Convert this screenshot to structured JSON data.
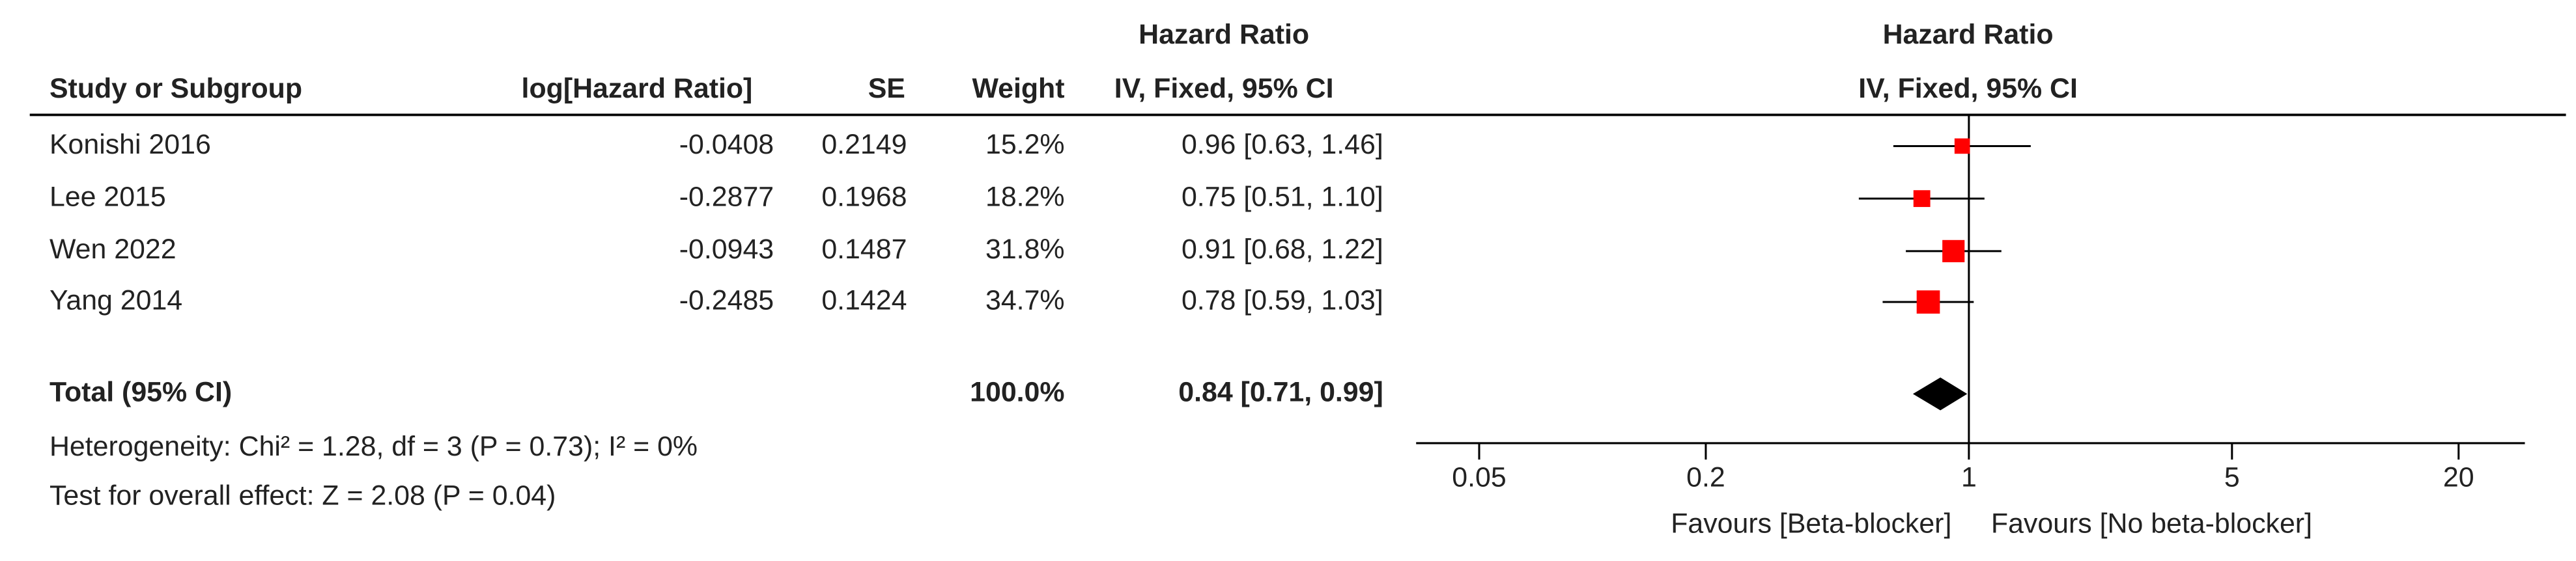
{
  "chart_data": {
    "type": "forest",
    "header_top": "Hazard Ratio",
    "header_sub": "IV, Fixed, 95% CI",
    "columns": [
      "Study or Subgroup",
      "log[Hazard Ratio]",
      "SE",
      "Weight"
    ],
    "studies": [
      {
        "name": "Konishi 2016",
        "log_hr": -0.0408,
        "se": 0.2149,
        "weight": 15.2,
        "weight_label": "15.2%",
        "hr": 0.96,
        "ci_low": 0.63,
        "ci_high": 1.46,
        "ci_label": "0.96 [0.63, 1.46]"
      },
      {
        "name": "Lee 2015",
        "log_hr": -0.2877,
        "se": 0.1968,
        "weight": 18.2,
        "weight_label": "18.2%",
        "hr": 0.75,
        "ci_low": 0.51,
        "ci_high": 1.1,
        "ci_label": "0.75 [0.51, 1.10]"
      },
      {
        "name": "Wen 2022",
        "log_hr": -0.0943,
        "se": 0.1487,
        "weight": 31.8,
        "weight_label": "31.8%",
        "hr": 0.91,
        "ci_low": 0.68,
        "ci_high": 1.22,
        "ci_label": "0.91 [0.68, 1.22]"
      },
      {
        "name": "Yang 2014",
        "log_hr": -0.2485,
        "se": 0.1424,
        "weight": 34.7,
        "weight_label": "34.7%",
        "hr": 0.78,
        "ci_low": 0.59,
        "ci_high": 1.03,
        "ci_label": "0.78 [0.59, 1.03]"
      }
    ],
    "total": {
      "name": "Total (95% CI)",
      "weight": 100.0,
      "weight_label": "100.0%",
      "hr": 0.84,
      "ci_low": 0.71,
      "ci_high": 0.99,
      "ci_label": "0.84 [0.71, 0.99]"
    },
    "heterogeneity": "Heterogeneity: Chi² = 1.28, df = 3 (P = 0.73); I² = 0%",
    "overall_effect": "Test for overall effect: Z = 2.08 (P = 0.04)",
    "favours_left": "Favours [Beta-blocker]",
    "favours_right": "Favours [No beta-blocker]",
    "log_scale": true,
    "xlim": [
      0.034,
      30
    ],
    "xticks": [
      0.05,
      0.2,
      1,
      5,
      20
    ],
    "color": "#ff0000"
  }
}
